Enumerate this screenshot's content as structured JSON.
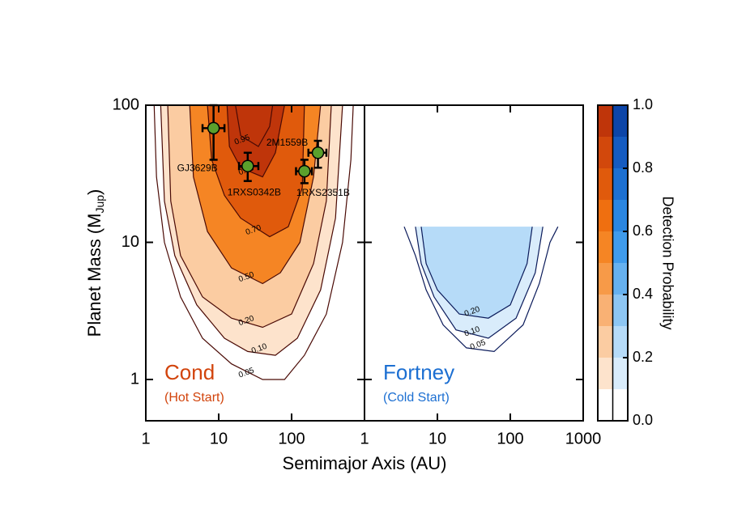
{
  "chart_data": {
    "type": "contour",
    "xlabel": "Semimajor Axis (AU)",
    "ylabel_parts": [
      "Planet Mass (M",
      "Jup",
      ")"
    ],
    "xlim": [
      1,
      1000
    ],
    "ylim": [
      0.5,
      100
    ],
    "yticks": [
      1,
      10,
      100
    ],
    "log_x": true,
    "log_y": true,
    "panels": [
      {
        "title": "Cond",
        "subtitle": "(Hot Start)",
        "title_color": "#d2440c",
        "colormap": "orange",
        "xticks": [
          1,
          10,
          100
        ],
        "contours": [
          {
            "level": 0.05,
            "level_label": "0.05",
            "x": [
              1.3,
              1.4,
              1.8,
              3,
              6,
              15,
              40,
              80,
              150,
              300,
              500,
              650,
              700
            ],
            "y": [
              100,
              30,
              10,
              4,
              2,
              1.3,
              1.0,
              1.0,
              1.5,
              3,
              10,
              40,
              100
            ]
          },
          {
            "level": 0.1,
            "level_label": "0.10",
            "x": [
              1.6,
              1.8,
              2.5,
              5,
              12,
              25,
              60,
              120,
              250,
              400,
              500
            ],
            "y": [
              100,
              20,
              8,
              3.5,
              2,
              1.6,
              1.5,
              2,
              4.5,
              15,
              100
            ]
          },
          {
            "level": 0.2,
            "level_label": "0.20",
            "x": [
              2,
              2.2,
              3,
              6,
              15,
              40,
              100,
              200,
              300,
              350
            ],
            "y": [
              100,
              20,
              8,
              4,
              2.8,
              2.4,
              3,
              7,
              20,
              100
            ]
          },
          {
            "level": 0.5,
            "level_label": "0.50",
            "x": [
              4,
              4.5,
              7,
              15,
              40,
              70,
              130,
              200,
              250
            ],
            "y": [
              100,
              30,
              12,
              6.5,
              5,
              6,
              10,
              30,
              100
            ]
          },
          {
            "level": 0.7,
            "level_label": "0.70",
            "x": [
              7,
              8,
              12,
              20,
              50,
              90,
              140,
              150
            ],
            "y": [
              100,
              40,
              22,
              15,
              11,
              13,
              25,
              100
            ]
          },
          {
            "level": 0.9,
            "level_label": "0.90",
            "x": [
              13,
              14,
              20,
              40,
              60,
              80
            ],
            "y": [
              100,
              50,
              35,
              30,
              45,
              100
            ]
          },
          {
            "level": 0.95,
            "level_label": "0.95",
            "x": [
              17,
              20,
              35,
              50,
              55
            ],
            "y": [
              100,
              60,
              50,
              70,
              100
            ]
          }
        ],
        "points": [
          {
            "name": "GJ3629B",
            "x": 8.5,
            "y": 68,
            "x_low": 6,
            "x_high": 12,
            "y_low": 40,
            "y_high": 100
          },
          {
            "name": "1RXS0342B",
            "x": 25,
            "y": 36,
            "x_low": 19,
            "x_high": 35,
            "y_low": 28,
            "y_high": 45
          },
          {
            "name": "1RXS2351B",
            "x": 150,
            "y": 33,
            "x_low": 115,
            "x_high": 190,
            "y_low": 27,
            "y_high": 40
          },
          {
            "name": "2M1559B",
            "x": 230,
            "y": 45,
            "x_low": 170,
            "x_high": 300,
            "y_low": 35,
            "y_high": 55
          }
        ]
      },
      {
        "title": "Fortney",
        "subtitle": "(Cold Start)",
        "title_color": "#1c6fd2",
        "colormap": "blue",
        "xticks": [
          1,
          10,
          100,
          1000
        ],
        "contours": [
          {
            "level": 0.05,
            "level_label": "0.05",
            "x": [
              3.5,
              5,
              7,
              12,
              25,
              60,
              150,
              250,
              350,
              450
            ],
            "y": [
              13,
              8,
              4.5,
              2.5,
              1.7,
              1.6,
              2.5,
              5,
              10,
              13
            ]
          },
          {
            "level": 0.1,
            "level_label": "0.10",
            "x": [
              5,
              6,
              9,
              18,
              50,
              120,
              220,
              280
            ],
            "y": [
              13,
              7,
              4,
              2.3,
              2.0,
              2.8,
              6,
              13
            ]
          },
          {
            "level": 0.2,
            "level_label": "0.20",
            "x": [
              6,
              7,
              10,
              20,
              50,
              100,
              170,
              200
            ],
            "y": [
              13,
              7,
              4.5,
              3,
              2.8,
              3.5,
              7,
              13
            ]
          }
        ],
        "points": []
      }
    ],
    "colorbar": {
      "label": "Detection Probability",
      "levels": [
        0,
        0.1,
        0.2,
        0.3,
        0.4,
        0.5,
        0.6,
        0.7,
        0.8,
        0.9,
        1.0
      ],
      "colors": {
        "orange": [
          "#ffffff",
          "#fde3cc",
          "#fbcca2",
          "#f9b174",
          "#f79a48",
          "#f58524",
          "#ef6f10",
          "#e05a0c",
          "#d2480c",
          "#bf350a"
        ],
        "blue": [
          "#ffffff",
          "#d9ecfb",
          "#b6dbf8",
          "#8dc6f3",
          "#66b1ef",
          "#3f9beb",
          "#2b86e0",
          "#1d70d1",
          "#155bc0",
          "#0c45a8"
        ]
      },
      "ticks": [
        {
          "value": 0,
          "label": "0.0"
        },
        {
          "value": 0.2,
          "label": "0.2"
        },
        {
          "value": 0.4,
          "label": "0.4"
        },
        {
          "value": 0.6,
          "label": "0.6"
        },
        {
          "value": 0.8,
          "label": "0.8"
        },
        {
          "value": 1.0,
          "label": "1.0"
        }
      ]
    }
  }
}
